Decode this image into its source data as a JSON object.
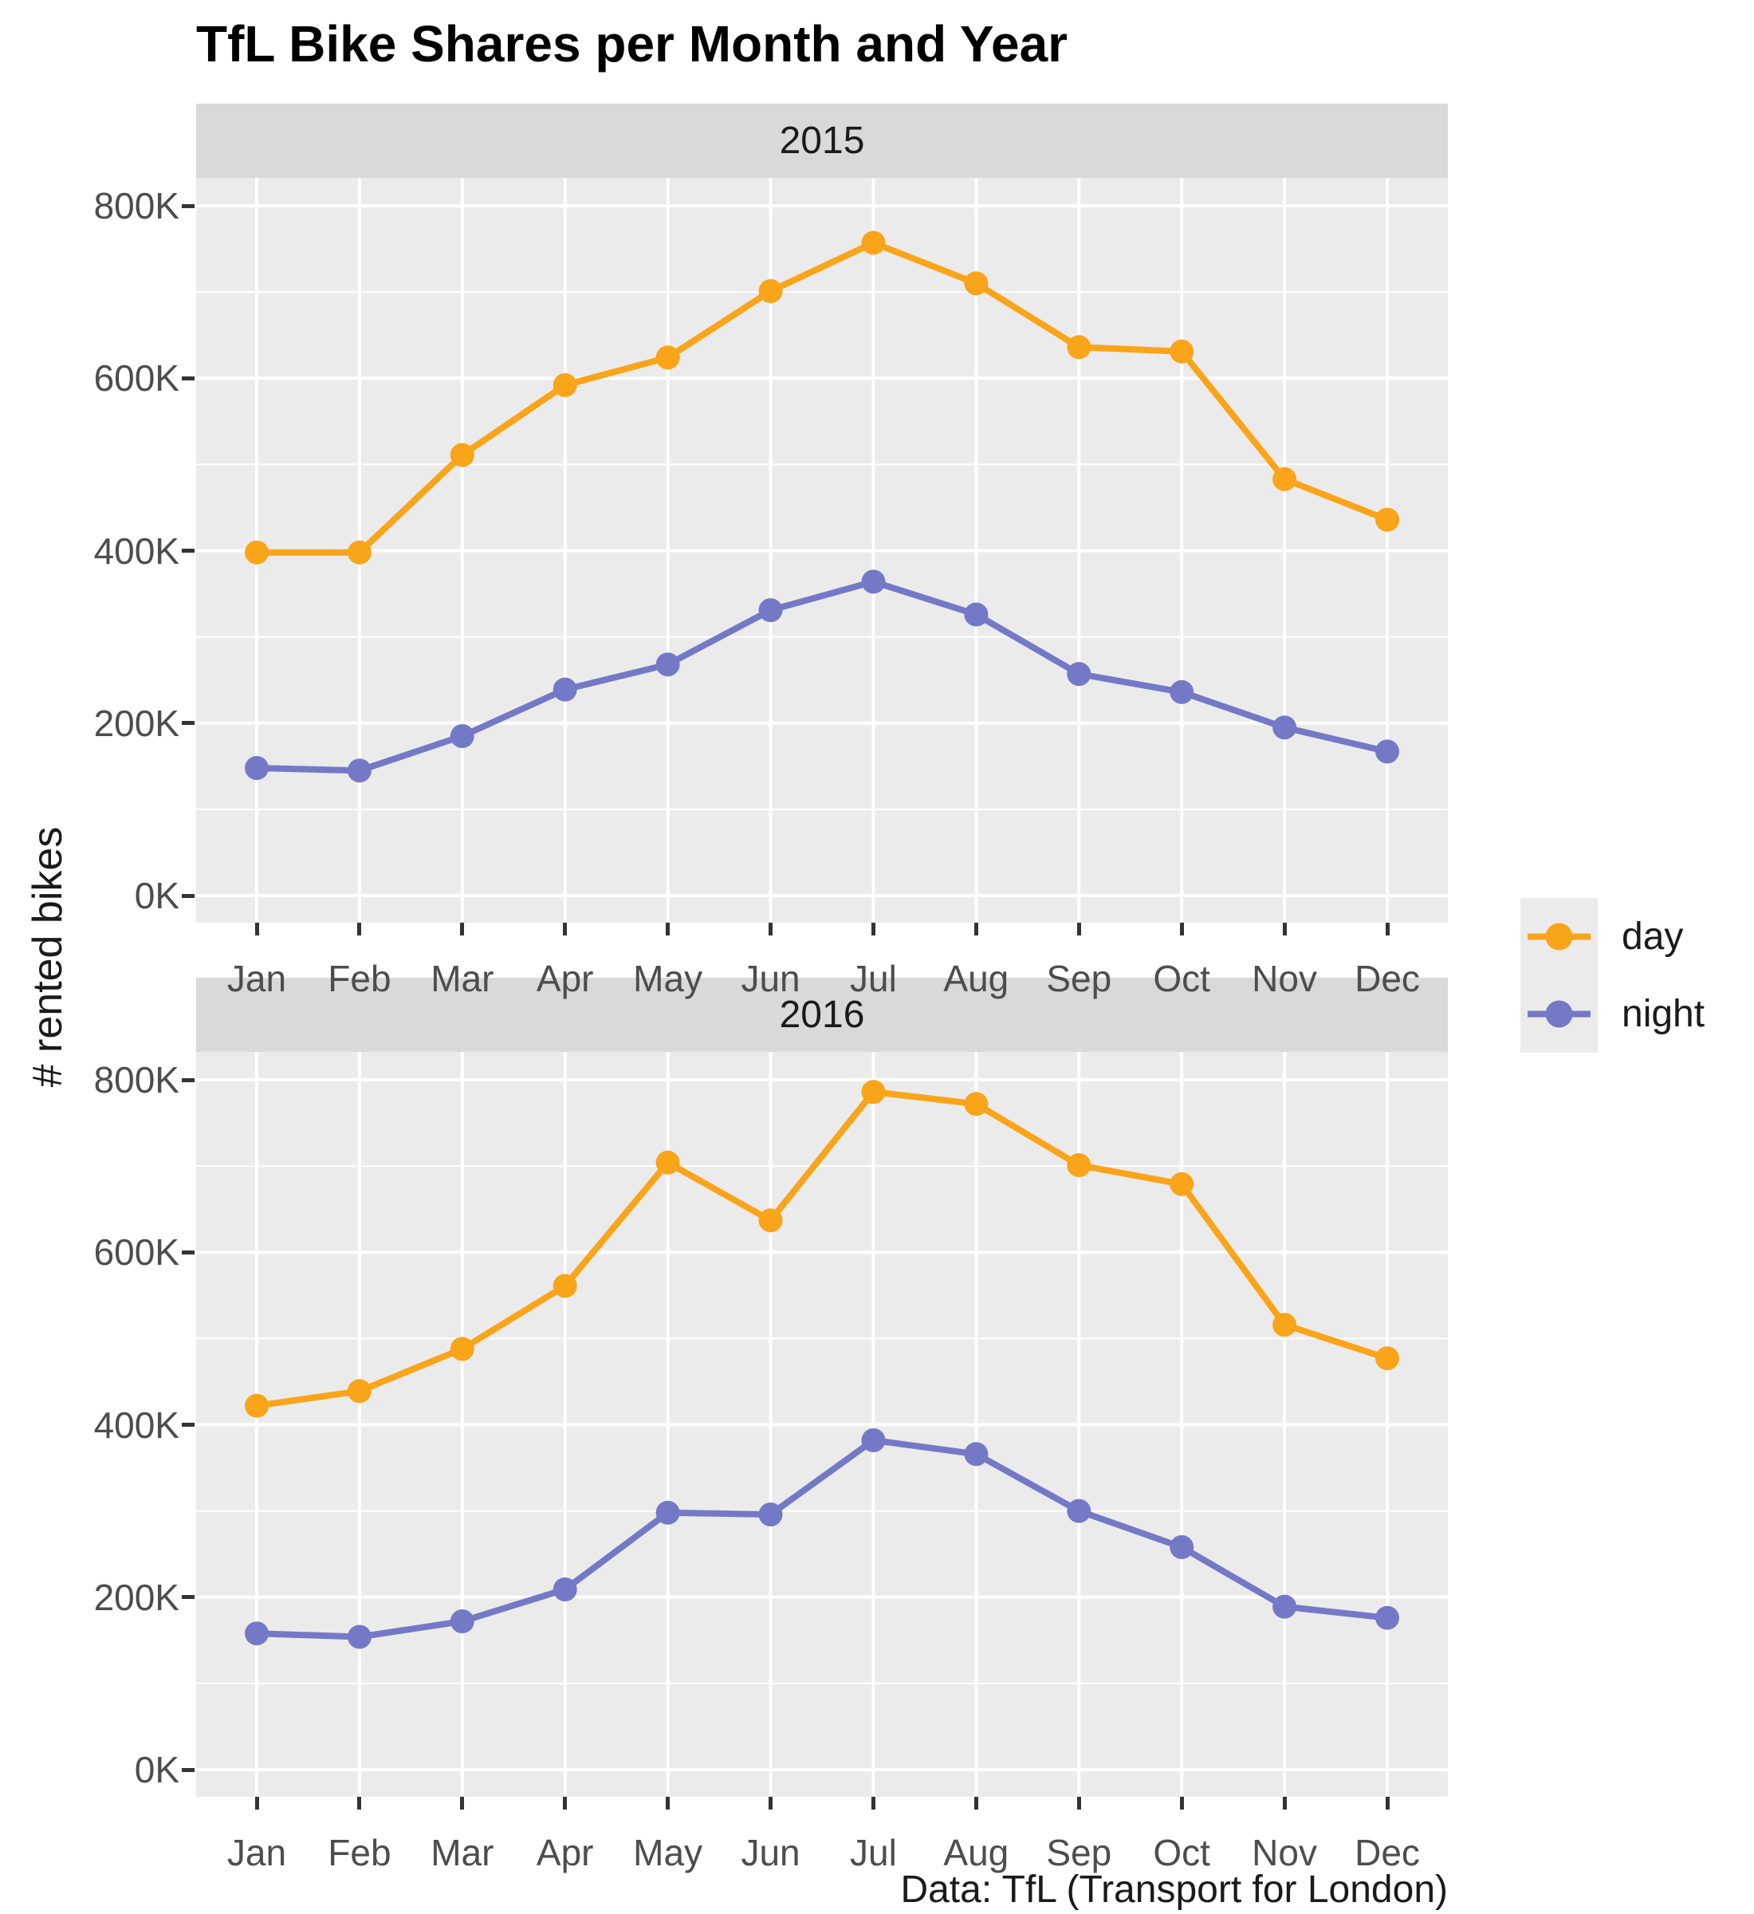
{
  "title": "TfL Bike Shares per Month and Year",
  "y_axis_title": "# rented bikes",
  "caption": "Data: TfL (Transport for London)",
  "colors": {
    "day": "#FAA41A",
    "night": "#7479C7",
    "panel_background": "#EBEBEB",
    "strip_background": "#D9D9D9",
    "axis_text": "#4D4D4D",
    "gridline": "#FFFFFF"
  },
  "legend": {
    "position": "right",
    "items": [
      {
        "label": "day",
        "color": "#FAA41A"
      },
      {
        "label": "night",
        "color": "#7479C7"
      }
    ]
  },
  "chart_data": {
    "type": "line",
    "title": "TfL Bike Shares per Month and Year",
    "xlabel": "",
    "ylabel": "# rented bikes",
    "unit": "thousands of rented bikes (K)",
    "categories": [
      "Jan",
      "Feb",
      "Mar",
      "Apr",
      "May",
      "Jun",
      "Jul",
      "Aug",
      "Sep",
      "Oct",
      "Nov",
      "Dec"
    ],
    "y_tick_labels": [
      "0K",
      "200K",
      "400K",
      "600K",
      "800K"
    ],
    "y_major_gridlines": [
      0,
      200,
      400,
      600,
      800
    ],
    "y_minor_gridlines": [
      100,
      300,
      500,
      700
    ],
    "ylim": [
      0,
      800
    ],
    "grid": "white major and minor gridlines on grey panel",
    "legend_position": "right",
    "facets": "year, stacked vertically",
    "panels": [
      {
        "facet_label": "2015",
        "series": [
          {
            "name": "day",
            "color": "#FAA41A",
            "values": [
              398,
              398,
              511,
              592,
              624,
              701,
              757,
              710,
              636,
              631,
              483,
              436
            ]
          },
          {
            "name": "night",
            "color": "#7479C7",
            "values": [
              148,
              145,
              185,
              239,
              268,
              331,
              364,
              326,
              257,
              236,
              195,
              167
            ]
          }
        ]
      },
      {
        "facet_label": "2016",
        "series": [
          {
            "name": "day",
            "color": "#FAA41A",
            "values": [
              422,
              439,
              488,
              561,
              704,
              637,
              786,
              772,
              701,
              679,
              516,
              477
            ]
          },
          {
            "name": "night",
            "color": "#7479C7",
            "values": [
              158,
              154,
              172,
              209,
              298,
              296,
              382,
              366,
              300,
              258,
              189,
              176
            ]
          }
        ]
      }
    ]
  }
}
